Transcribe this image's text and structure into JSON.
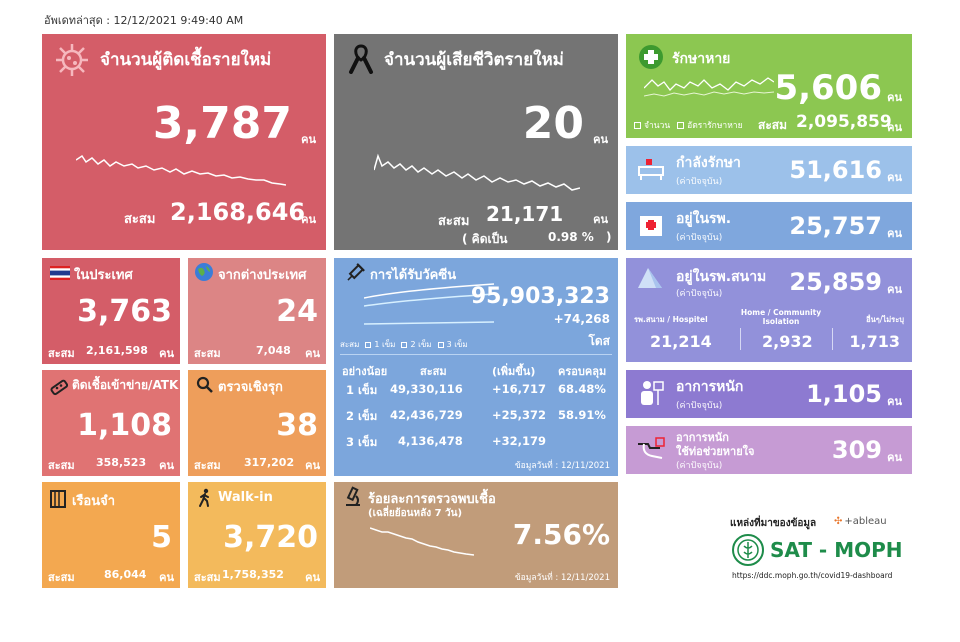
{
  "updated": "อัพเดทล่าสุด : 12/12/2021 9:49:40 AM",
  "new_cases": {
    "title": "จำนวนผู้ติดเชื้อรายใหม่",
    "value": "3,787",
    "unit": "คน",
    "cum_label": "สะสม",
    "cum_value": "2,168,646",
    "cum_unit": "คน"
  },
  "new_deaths": {
    "title": "จำนวนผู้เสียชีวิตรายใหม่",
    "value": "20",
    "unit": "คน",
    "cum_label": "สะสม",
    "cum_value": "21,171",
    "cum_unit": "คน",
    "rate_open": "( คิดเป็น",
    "rate_value": "0.98 %",
    "rate_close": ")"
  },
  "recovered": {
    "title": "รักษาหาย",
    "value": "5,606",
    "unit": "คน",
    "legend_1": "จำนวน",
    "legend_2": "อัตรารักษาหาย",
    "cum_label": "สะสม",
    "cum_value": "2,095,859",
    "cum_unit": "คน"
  },
  "treating": {
    "title": "กำลังรักษา",
    "sub": "(ค่าปัจจุบัน)",
    "value": "51,616",
    "unit": "คน"
  },
  "hospital": {
    "title": "อยู่ในรพ.",
    "sub": "(ค่าปัจจุบัน)",
    "value": "25,757",
    "unit": "คน"
  },
  "field_hospital": {
    "title": "อยู่ในรพ.สนาม",
    "sub": "(ค่าปัจจุบัน)",
    "value": "25,859",
    "unit": "คน",
    "col1_label": "รพ.สนาม / Hospitel",
    "col1_value": "21,214",
    "col2_label": "Home / Community Isolation",
    "col2_value": "2,932",
    "col3_label": "อื่นๆ/ไม่ระบุ",
    "col3_value": "1,713"
  },
  "severe": {
    "title": "อาการหนัก",
    "sub": "(ค่าปัจจุบัน)",
    "value": "1,105",
    "unit": "คน"
  },
  "ventilator": {
    "title1": "อาการหนัก",
    "title2": "ใช้ท่อช่วยหายใจ",
    "sub": "(ค่าปัจจุบัน)",
    "value": "309",
    "unit": "คน"
  },
  "domestic": {
    "title": "ในประเทศ",
    "value": "3,763",
    "cum_label": "สะสม",
    "cum_value": "2,161,598",
    "cum_unit": "คน"
  },
  "imported": {
    "title": "จากต่างประเทศ",
    "value": "24",
    "cum_label": "สะสม",
    "cum_value": "7,048",
    "cum_unit": "คน"
  },
  "atk": {
    "title": "ติดเชื้อเข้าข่าย/ATK",
    "value": "1,108",
    "cum_label": "สะสม",
    "cum_value": "358,523",
    "cum_unit": "คน"
  },
  "proactive": {
    "title": "ตรวจเชิงรุก",
    "value": "38",
    "cum_label": "สะสม",
    "cum_value": "317,202",
    "cum_unit": "คน"
  },
  "prison": {
    "title": "เรือนจำ",
    "value": "5",
    "cum_label": "สะสม",
    "cum_value": "86,044",
    "cum_unit": "คน"
  },
  "walkin": {
    "title": "Walk-in",
    "value": "3,720",
    "cum_label": "สะสม",
    "cum_value": "1,758,352",
    "cum_unit": "คน"
  },
  "vaccine": {
    "title": "การได้รับวัคซีน",
    "value": "95,903,323",
    "increase": "+74,268",
    "unit": "โดส",
    "legend": [
      "สะสม",
      "1 เข็ม",
      "2 เข็ม",
      "3 เข็ม"
    ],
    "headers": [
      "อย่างน้อย",
      "สะสม",
      "(เพิ่มขึ้น)",
      "ครอบคลุม"
    ],
    "rows": [
      {
        "dose": "1 เข็ม",
        "cum": "49,330,116",
        "inc": "+16,717",
        "cov": "68.48%"
      },
      {
        "dose": "2 เข็ม",
        "cum": "42,436,729",
        "inc": "+25,372",
        "cov": "58.91%"
      },
      {
        "dose": "3 เข็ม",
        "cum": "4,136,478",
        "inc": "+32,179",
        "cov": ""
      }
    ],
    "date": "ข้อมูลวันที่ : 12/11/2021"
  },
  "positivity": {
    "title": "ร้อยละการตรวจพบเชื้อ",
    "sub": "(เฉลี่ยย้อนหลัง 7 วัน)",
    "value": "7.56%",
    "date": "ข้อมูลวันที่ : 12/11/2021"
  },
  "source": {
    "label": "แหล่งที่มาของข้อมูล",
    "tableau": "+ableau",
    "brand": "SAT - MOPH",
    "url": "https://ddc.moph.go.th/covid19-dashboard"
  },
  "colors": {
    "cases": "#d45d68",
    "deaths": "#747474",
    "recovered": "#8cc751",
    "vaccine": "#7ca6dc"
  }
}
